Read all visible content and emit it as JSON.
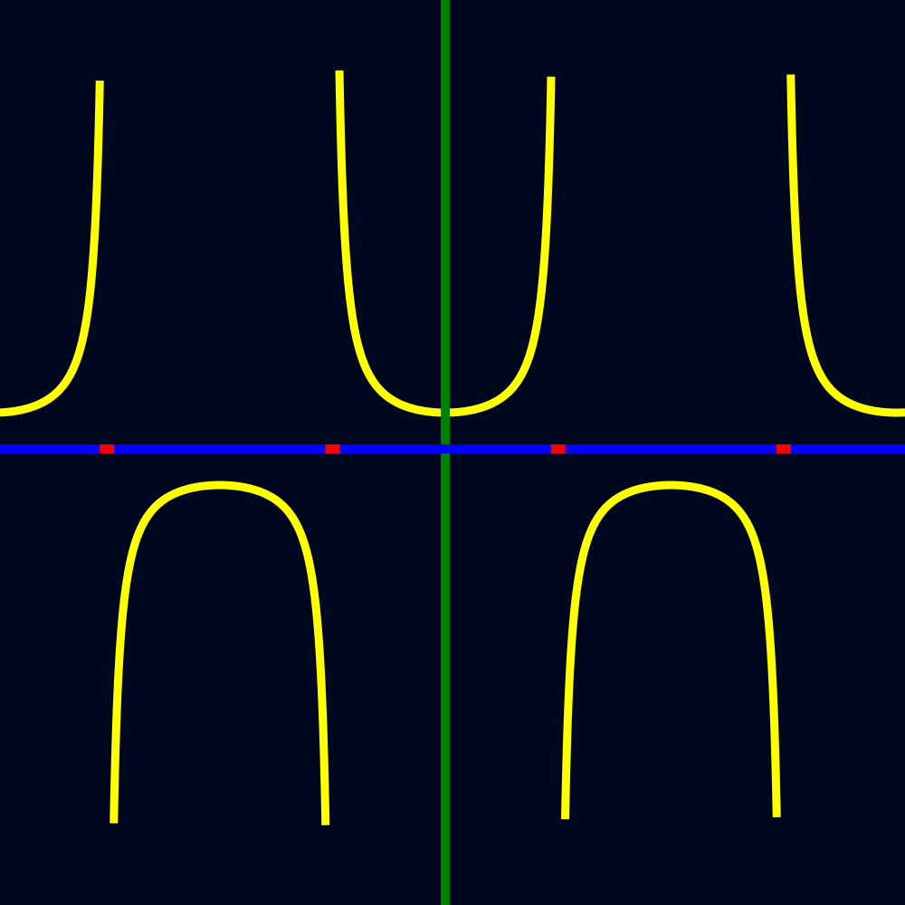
{
  "colors": {
    "background": "#000820",
    "curve": "#ffff00",
    "x_axis": "#0000ff",
    "y_axis": "#008000",
    "tick": "#ff0000"
  },
  "chart_data": {
    "type": "line",
    "function": "sec(x)",
    "title": "",
    "xlabel": "",
    "ylabel": "",
    "xlim": [
      -6.2,
      6.4
    ],
    "ylim": [
      -12.6,
      12.4
    ],
    "curve_clip": [
      -10.5,
      10.5
    ],
    "x_ticks": [
      -4.71,
      -1.57,
      1.57,
      4.71
    ],
    "grid": false,
    "legend": "none"
  }
}
